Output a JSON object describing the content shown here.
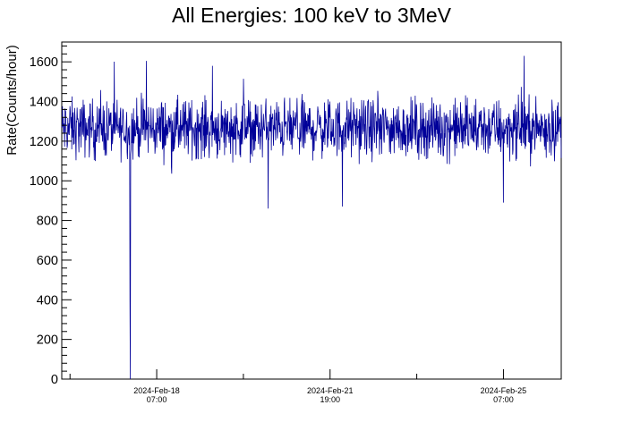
{
  "chart_data": {
    "type": "line",
    "title": "All Energies:  100 keV to 3MeV",
    "ylabel": "Rate(Counts/hour)",
    "xlabel": "",
    "ylim": [
      0,
      1700
    ],
    "yticks": [
      0,
      200,
      400,
      600,
      800,
      1000,
      1200,
      1400,
      1600
    ],
    "ytick_labels": [
      "0",
      "200",
      "400",
      "600",
      "800",
      "1000",
      "1200",
      "1400",
      "1600"
    ],
    "x_range_days": [
      0,
      12.1
    ],
    "xticks": [
      {
        "day": 2.3,
        "date": "2024-Feb-18",
        "time": "07:00"
      },
      {
        "day": 6.5,
        "date": "2024-Feb-21",
        "time": "19:00"
      },
      {
        "day": 10.7,
        "date": "2024-Feb-25",
        "time": "07:00"
      }
    ],
    "series": [
      {
        "color": "#000099",
        "baseline_mean": 1230,
        "noise_range": [
          1050,
          1480
        ],
        "notable_points": [
          {
            "day": 1.65,
            "value": 410
          },
          {
            "day": 1.66,
            "value": 0
          },
          {
            "day": 2.05,
            "value": 1605
          },
          {
            "day": 3.65,
            "value": 1580
          },
          {
            "day": 5.0,
            "value": 860
          },
          {
            "day": 6.8,
            "value": 870
          },
          {
            "day": 11.2,
            "value": 1630
          },
          {
            "day": 10.7,
            "value": 890
          }
        ]
      }
    ],
    "grid": false
  }
}
